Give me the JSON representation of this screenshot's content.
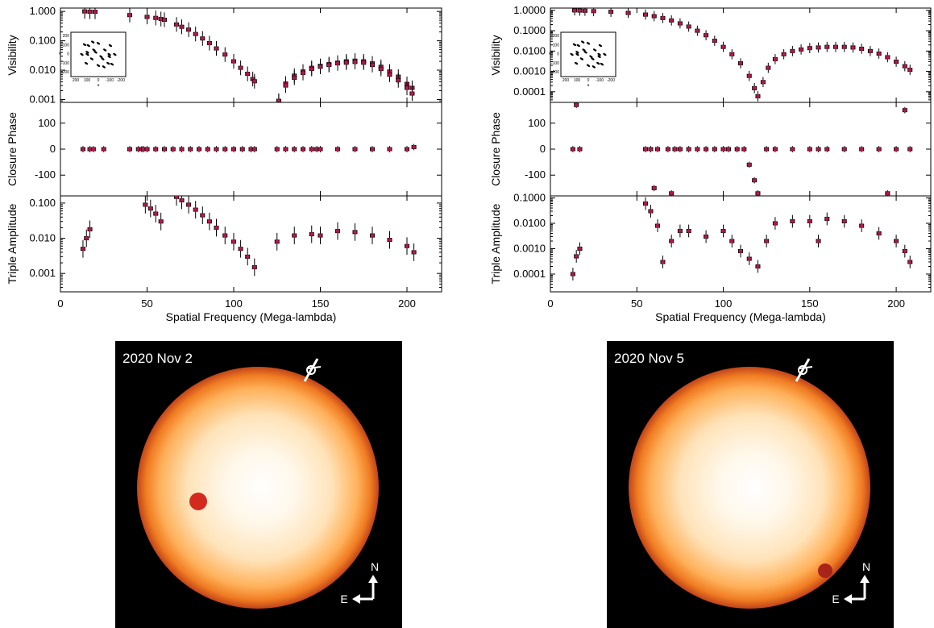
{
  "chart_data": [
    {
      "type": "scatter",
      "panel": "top-left",
      "xlabel": "Spatial Frequency (Mega-lambda)",
      "xlim": [
        0,
        220
      ],
      "xticks": [
        0,
        50,
        100,
        150,
        200
      ],
      "subplots": [
        {
          "ylabel": "Visibility",
          "yscale": "log",
          "ylim": [
            0.0008,
            1.3
          ],
          "ytick_labels": [
            "1.000",
            "0.100",
            "0.010",
            "0.001"
          ],
          "series": [
            {
              "values_x": [
                14,
                17,
                20,
                40,
                50,
                55,
                58,
                60,
                67,
                70,
                74,
                78,
                82,
                86,
                90,
                95,
                100,
                104,
                108,
                111,
                112,
                126,
                130,
                135,
                140,
                145,
                150,
                155,
                160,
                165,
                170,
                175,
                180,
                185,
                190,
                195,
                200,
                203
              ],
              "values_y": [
                1.0,
                0.98,
                0.97,
                0.75,
                0.65,
                0.6,
                0.55,
                0.52,
                0.36,
                0.3,
                0.24,
                0.17,
                0.12,
                0.083,
                0.055,
                0.034,
                0.02,
                0.012,
                0.0075,
                0.005,
                0.0042,
                0.0009,
                0.0035,
                0.0065,
                0.009,
                0.012,
                0.014,
                0.016,
                0.018,
                0.02,
                0.021,
                0.02,
                0.017,
                0.013,
                0.009,
                0.006,
                0.0034,
                0.0025
              ]
            },
            {
              "values_x": [
                126,
                130,
                135,
                140,
                145,
                150,
                155,
                160,
                165,
                170,
                175,
                180,
                185,
                190,
                195,
                200,
                203
              ],
              "values_y": [
                0.0009,
                0.003,
                0.0055,
                0.008,
                0.011,
                0.013,
                0.015,
                0.017,
                0.018,
                0.019,
                0.018,
                0.015,
                0.011,
                0.007,
                0.0045,
                0.0025,
                0.0016
              ]
            }
          ],
          "inset": {
            "xlabel": "u",
            "ylabel": "v",
            "xtick_labels": [
              "200",
              "100",
              "0",
              "-100",
              "-200"
            ],
            "ytick_labels": [
              "200",
              "100",
              "0",
              "-100",
              "-200"
            ]
          }
        },
        {
          "ylabel": "Closure Phase",
          "ylim": [
            -180,
            180
          ],
          "ytick_labels": [
            "100",
            "0",
            "-100"
          ],
          "series": [
            {
              "values_x": [
                13,
                17,
                19,
                25,
                40,
                45,
                47,
                48,
                50,
                55,
                60,
                65,
                70,
                75,
                80,
                85,
                90,
                95,
                100,
                105,
                110,
                112,
                125,
                130,
                135,
                140,
                145,
                148,
                150,
                160,
                170,
                180,
                190,
                200,
                204
              ],
              "values_y": [
                0,
                0,
                0,
                0,
                0,
                0,
                0,
                0,
                0,
                0,
                0,
                0,
                0,
                0,
                0,
                0,
                0,
                0,
                0,
                0,
                0,
                0,
                0,
                0,
                0,
                0,
                0,
                0,
                0,
                0,
                0,
                0,
                0,
                0,
                8
              ]
            }
          ]
        },
        {
          "ylabel": "Triple Amplitude",
          "yscale": "log",
          "ylim": [
            0.0003,
            0.16
          ],
          "ytick_labels": [
            "0.100",
            "0.010",
            "0.001"
          ],
          "series": [
            {
              "values_x": [
                13,
                15,
                17,
                49,
                52,
                55,
                58,
                67,
                70,
                74,
                78,
                82,
                86,
                90,
                95,
                100,
                104,
                108,
                112,
                125,
                135,
                145,
                150,
                160,
                170,
                180,
                190,
                200,
                204
              ],
              "values_y": [
                0.005,
                0.01,
                0.018,
                0.09,
                0.07,
                0.05,
                0.03,
                0.15,
                0.12,
                0.09,
                0.065,
                0.045,
                0.03,
                0.02,
                0.012,
                0.008,
                0.005,
                0.003,
                0.0015,
                0.008,
                0.012,
                0.013,
                0.012,
                0.016,
                0.015,
                0.012,
                0.009,
                0.006,
                0.004
              ]
            }
          ]
        }
      ]
    },
    {
      "type": "scatter",
      "panel": "top-right",
      "xlabel": "Spatial Frequency (Mega-lambda)",
      "xlim": [
        0,
        220
      ],
      "xticks": [
        0,
        50,
        100,
        150,
        200
      ],
      "subplots": [
        {
          "ylabel": "Visibility",
          "yscale": "log",
          "ylim": [
            3e-05,
            1.3
          ],
          "ytick_labels": [
            "1.0000",
            "0.1000",
            "0.0100",
            "0.0010",
            "0.0001"
          ],
          "series": [
            {
              "values_x": [
                14,
                17,
                20,
                25,
                35,
                45,
                55,
                60,
                65,
                70,
                75,
                80,
                85,
                90,
                95,
                100,
                105,
                110,
                115,
                118,
                120,
                123,
                126,
                130,
                135,
                140,
                145,
                150,
                155,
                160,
                165,
                170,
                175,
                180,
                185,
                190,
                195,
                200,
                205,
                208
              ],
              "values_y": [
                1.0,
                0.98,
                0.96,
                0.92,
                0.85,
                0.75,
                0.62,
                0.52,
                0.42,
                0.32,
                0.23,
                0.16,
                0.1,
                0.06,
                0.032,
                0.016,
                0.007,
                0.0025,
                0.0006,
                0.00015,
                6e-05,
                0.0003,
                0.0015,
                0.004,
                0.007,
                0.01,
                0.012,
                0.014,
                0.015,
                0.016,
                0.016,
                0.016,
                0.015,
                0.013,
                0.01,
                0.0075,
                0.005,
                0.003,
                0.0018,
                0.0012
              ]
            }
          ],
          "inset": {
            "xlabel": "u",
            "ylabel": "v",
            "xtick_labels": [
              "200",
              "100",
              "0",
              "-100",
              "-200"
            ],
            "ytick_labels": [
              "200",
              "100",
              "0",
              "-100",
              "-200"
            ]
          }
        },
        {
          "ylabel": "Closure Phase",
          "ylim": [
            -180,
            180
          ],
          "ytick_labels": [
            "100",
            "0",
            "-100"
          ],
          "series": [
            {
              "values_x": [
                13,
                15,
                17,
                55,
                58,
                60,
                62,
                68,
                70,
                72,
                75,
                80,
                85,
                90,
                95,
                100,
                103,
                108,
                112,
                115,
                118,
                120,
                125,
                130,
                140,
                150,
                155,
                160,
                170,
                180,
                190,
                195,
                200,
                205,
                208
              ],
              "values_y": [
                0,
                170,
                0,
                0,
                0,
                -150,
                0,
                0,
                -170,
                0,
                0,
                0,
                0,
                0,
                0,
                0,
                0,
                0,
                0,
                -60,
                -120,
                -170,
                0,
                0,
                0,
                0,
                0,
                0,
                0,
                0,
                0,
                -170,
                0,
                150,
                0
              ]
            }
          ]
        },
        {
          "ylabel": "Triple Amplitude",
          "yscale": "log",
          "ylim": [
            2e-05,
            0.12
          ],
          "ytick_labels": [
            "0.1000",
            "0.0100",
            "0.0010",
            "0.0001"
          ],
          "series": [
            {
              "values_x": [
                13,
                15,
                17,
                55,
                58,
                62,
                65,
                70,
                75,
                80,
                90,
                100,
                105,
                110,
                115,
                120,
                125,
                130,
                140,
                150,
                155,
                160,
                170,
                180,
                190,
                200,
                205,
                208
              ],
              "values_y": [
                0.0001,
                0.0005,
                0.001,
                0.06,
                0.03,
                0.008,
                0.0003,
                0.002,
                0.005,
                0.005,
                0.003,
                0.005,
                0.002,
                0.0008,
                0.0004,
                0.0002,
                0.002,
                0.01,
                0.012,
                0.012,
                0.002,
                0.015,
                0.012,
                0.008,
                0.004,
                0.002,
                0.0008,
                0.0003
              ]
            }
          ]
        }
      ]
    }
  ],
  "images": [
    {
      "label": "2020 Nov 2",
      "compass": {
        "north": "N",
        "east": "E"
      }
    },
    {
      "label": "2020 Nov 5",
      "compass": {
        "north": "N",
        "east": "E"
      }
    }
  ],
  "colors": {
    "data": "#000000",
    "model": "#b0184a",
    "spot_1": "#d42a1e",
    "spot_2": "#a8241a",
    "background": "#000000"
  }
}
